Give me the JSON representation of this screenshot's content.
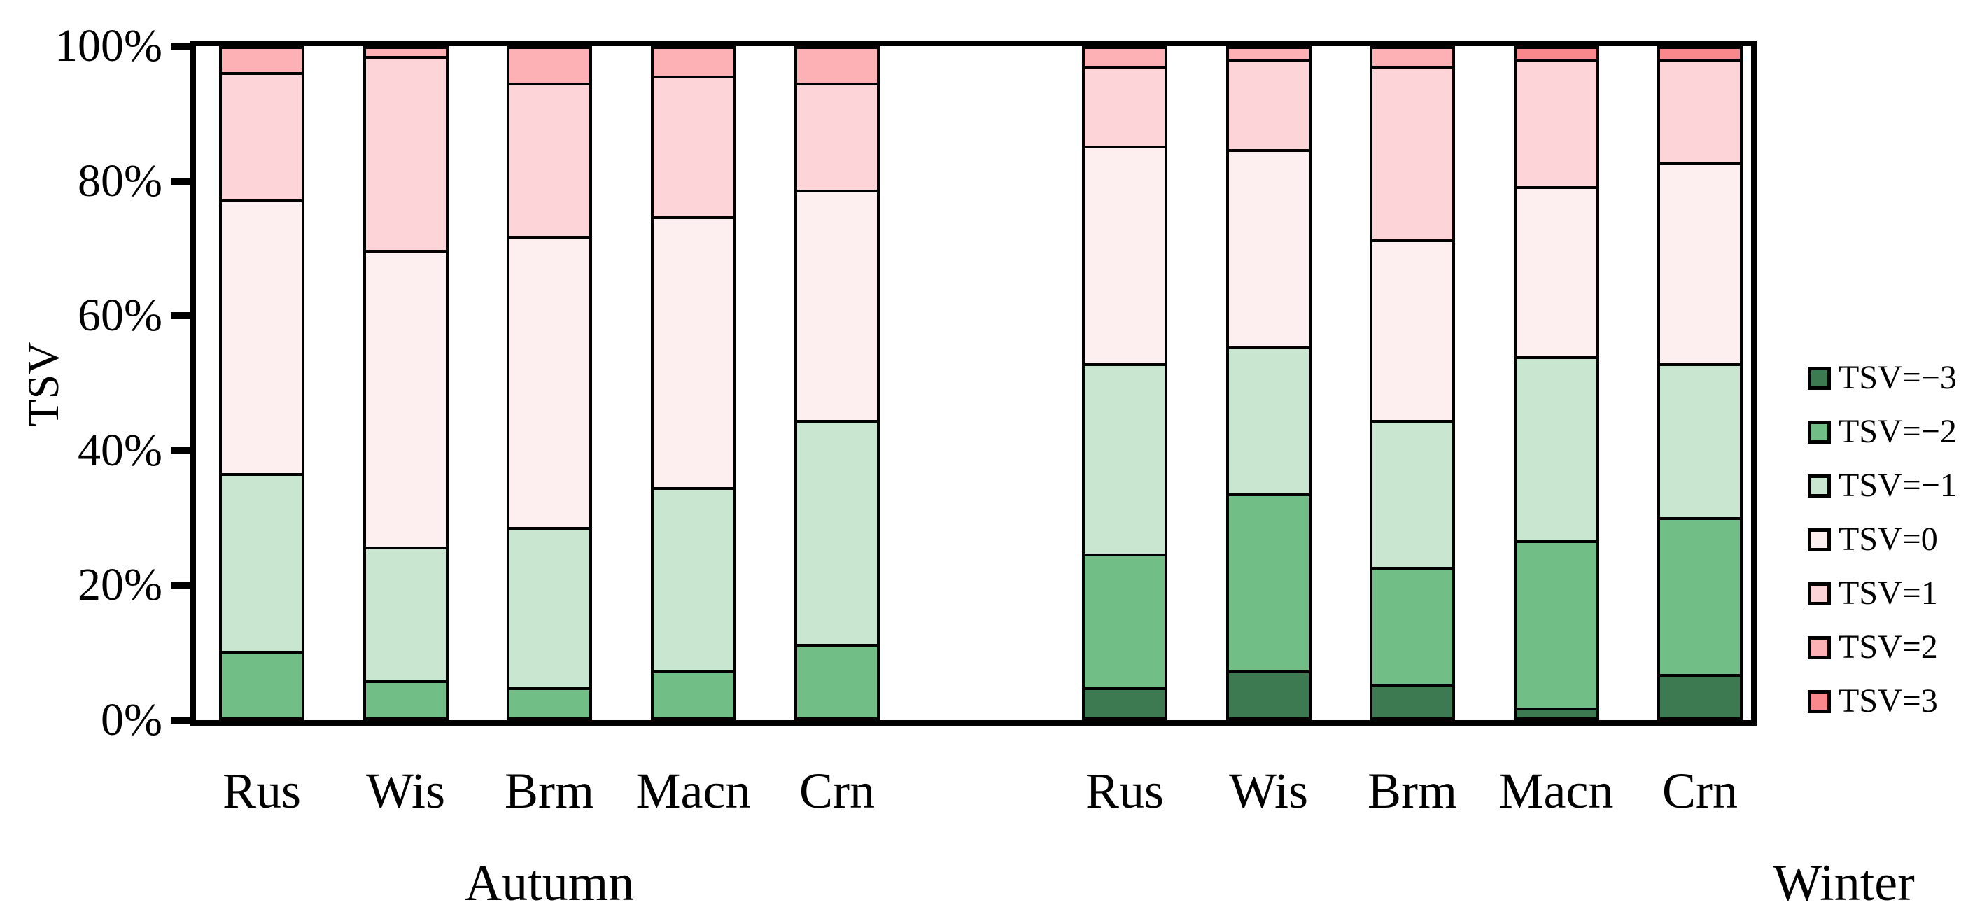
{
  "figure": {
    "y_axis_title": "TSV"
  },
  "chart_data": {
    "type": "bar",
    "stacked": true,
    "unit": "percent of votes",
    "title": "",
    "xlabel": "",
    "ylabel": "TSV",
    "ylim": [
      0,
      100
    ],
    "grid": false,
    "legend_position": "right",
    "y_ticks": [
      {
        "label": "0%",
        "value": 0
      },
      {
        "label": "20%",
        "value": 20
      },
      {
        "label": "40%",
        "value": 40
      },
      {
        "label": "60%",
        "value": 60
      },
      {
        "label": "80%",
        "value": 80
      },
      {
        "label": "100%",
        "value": 100
      }
    ],
    "groups": [
      {
        "label": "Autumn",
        "categories": [
          "Rus",
          "Wis",
          "Brm",
          "Macn",
          "Crn"
        ]
      },
      {
        "label": "Winter",
        "categories": [
          "Rus",
          "Wis",
          "Brm",
          "Macn",
          "Crn"
        ]
      }
    ],
    "series": [
      {
        "name": "TSV=−3",
        "tsv": -3,
        "color": "#3d7a52",
        "values": [
          [
            0,
            0,
            0,
            0,
            0
          ],
          [
            4.5,
            7,
            5,
            1.5,
            6.5
          ]
        ]
      },
      {
        "name": "TSV=−2",
        "tsv": -2,
        "color": "#71bf86",
        "values": [
          [
            10,
            5.5,
            4.5,
            7,
            11
          ],
          [
            20,
            26.5,
            17.5,
            25,
            23.5
          ]
        ]
      },
      {
        "name": "TSV=−1",
        "tsv": -1,
        "color": "#c9e7d0",
        "values": [
          [
            26.5,
            20,
            24,
            27.5,
            33.5
          ],
          [
            28.5,
            22,
            22,
            27.5,
            23
          ]
        ]
      },
      {
        "name": "TSV=0",
        "tsv": 0,
        "color": "#fdeef0",
        "values": [
          [
            41,
            44.5,
            43.5,
            40.5,
            34.5
          ],
          [
            32.5,
            29.5,
            27,
            25.5,
            30
          ]
        ]
      },
      {
        "name": "TSV=1",
        "tsv": 1,
        "color": "#fdd5d8",
        "values": [
          [
            19,
            29,
            23,
            21,
            16
          ],
          [
            12,
            13.5,
            26,
            19,
            15.5
          ]
        ]
      },
      {
        "name": "TSV=2",
        "tsv": 2,
        "color": "#fdb1b5",
        "values": [
          [
            3.5,
            1,
            5,
            4,
            5
          ],
          [
            2.5,
            1.5,
            2.5,
            0,
            0
          ]
        ]
      },
      {
        "name": "TSV=3",
        "tsv": 3,
        "color": "#f9888c",
        "values": [
          [
            0,
            0,
            0,
            0,
            0
          ],
          [
            0,
            0,
            0,
            1.5,
            1.5
          ]
        ]
      }
    ]
  }
}
